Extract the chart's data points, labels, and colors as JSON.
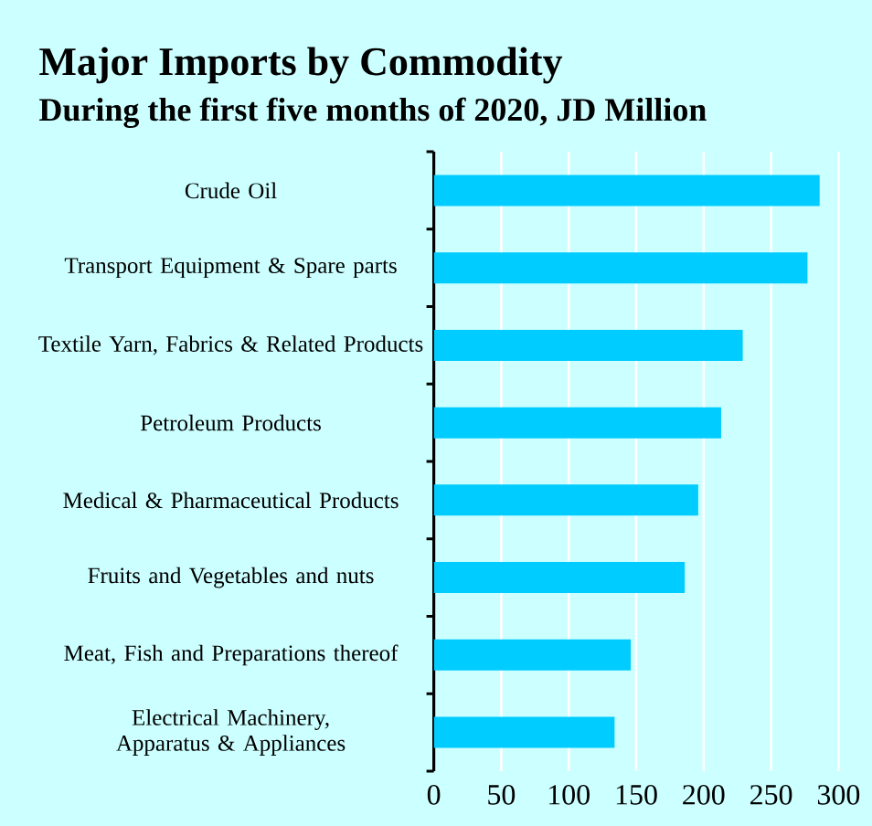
{
  "chart_data": {
    "type": "bar",
    "orientation": "horizontal",
    "title": "Major Imports by Commodity",
    "subtitle": "During the first five months of 2020, JD Million",
    "categories": [
      "Crude Oil",
      "Transport Equipment & Spare parts",
      "Textile Yarn, Fabrics & Related Products",
      "Petroleum Products",
      "Medical & Pharmaceutical Products",
      "Fruits and Vegetables and nuts",
      "Meat, Fish and Preparations thereof",
      "Electrical Machinery, Apparatus & Appliances"
    ],
    "values": [
      286,
      277,
      229,
      213,
      196,
      186,
      146,
      134
    ],
    "color": "#00ccff",
    "xlim": [
      0,
      300
    ],
    "xticks": [
      0,
      50,
      100,
      150,
      200,
      250,
      300
    ],
    "grid": "x"
  }
}
